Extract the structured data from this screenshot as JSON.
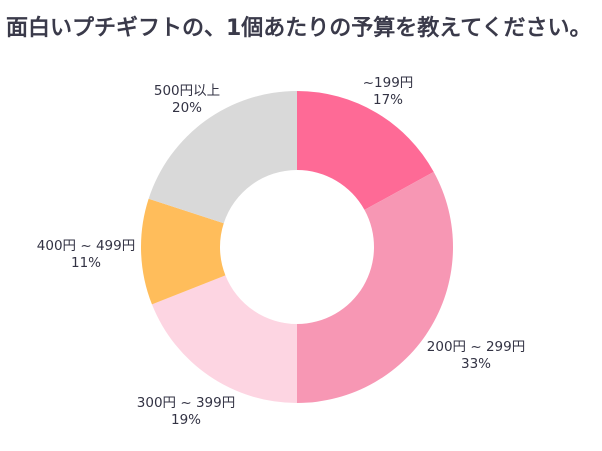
{
  "chart_data": {
    "type": "pie",
    "title": "面白いプチギフトの、1個あたりの予算を教えてください。",
    "donut": true,
    "slices": [
      {
        "label": "~199円",
        "percent_label": "17%",
        "value": 17,
        "color": "#fe6a96"
      },
      {
        "label": "200円 ~ 299円",
        "percent_label": "33%",
        "value": 33,
        "color": "#f797b4"
      },
      {
        "label": "300円 ~ 399円",
        "percent_label": "19%",
        "value": 19,
        "color": "#fdd5e2"
      },
      {
        "label": "400円 ~ 499円",
        "percent_label": "11%",
        "value": 11,
        "color": "#ffbd5b"
      },
      {
        "label": "500円以上",
        "percent_label": "20%",
        "value": 20,
        "color": "#d9d9d9"
      }
    ]
  }
}
